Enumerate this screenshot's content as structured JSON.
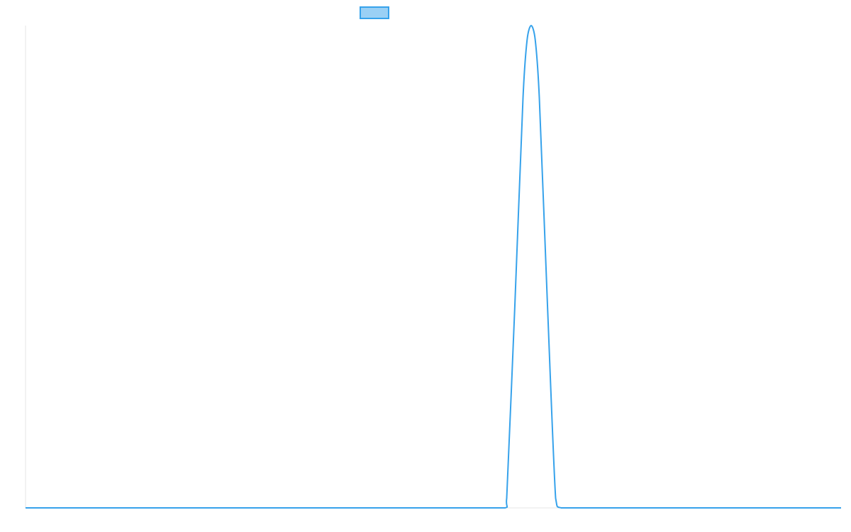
{
  "chart_data": {
    "type": "line",
    "title": "",
    "xlabel": "",
    "ylabel": "",
    "grid": false,
    "legend_position": "top-center",
    "colors": {
      "line": "#36a2eb",
      "legend_fill": "#9ad0f5",
      "axis": "#e5e5e5"
    },
    "x": [
      0,
      5,
      10,
      15,
      20,
      25,
      30,
      35,
      40,
      45,
      50,
      55,
      58.8,
      59.0,
      60.0,
      61.0,
      61.5,
      62.0,
      62.5,
      63.0,
      64.0,
      65.0,
      65.7,
      70,
      75,
      80,
      85,
      90,
      95,
      100
    ],
    "series": [
      {
        "name": "",
        "values": [
          0,
          0,
          0,
          0,
          0,
          0,
          0,
          0,
          0,
          0,
          0,
          0,
          0,
          0.02,
          0.42,
          0.85,
          0.97,
          1.0,
          0.97,
          0.85,
          0.42,
          0.02,
          0,
          0,
          0,
          0,
          0,
          0,
          0,
          0
        ]
      }
    ],
    "xlim": [
      0,
      100
    ],
    "ylim": [
      0,
      1
    ]
  }
}
